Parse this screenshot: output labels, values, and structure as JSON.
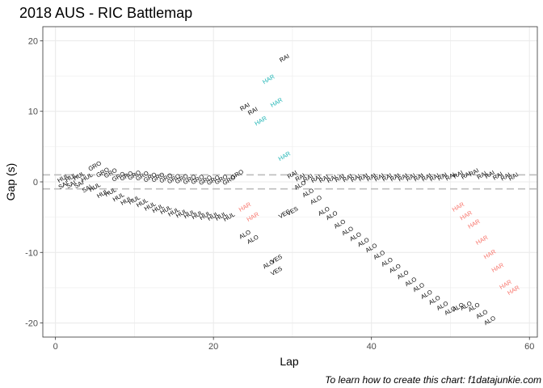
{
  "chart_data": {
    "type": "scatter",
    "title": "2018 AUS - RIC Battlemap",
    "caption": "To learn how to create this chart: f1datajunkie.com",
    "xlabel": "Lap",
    "ylabel": "Gap (s)",
    "xlim": [
      -1.6,
      61.0
    ],
    "ylim": [
      -22.0,
      22.0
    ],
    "x_ticks": [
      0,
      20,
      40,
      60
    ],
    "y_ticks": [
      -20,
      -10,
      0,
      10,
      20
    ],
    "grid": true,
    "label_angle": 30,
    "reference_lines": [
      1,
      -1
    ],
    "colors": {
      "black": "#000000",
      "teal": "#1fb5b5",
      "red": "#f8766d",
      "ref_line": "#bdbdbd",
      "grid": "#ebebeb",
      "panel_border": "#333333"
    },
    "points": [
      {
        "x": 1,
        "y": 0.5,
        "label": "HUL",
        "color": "black"
      },
      {
        "x": 1,
        "y": -0.5,
        "label": "SAI",
        "color": "black"
      },
      {
        "x": 2,
        "y": 0.6,
        "label": "HUL",
        "color": "black"
      },
      {
        "x": 2,
        "y": -0.4,
        "label": "SAI",
        "color": "black"
      },
      {
        "x": 3,
        "y": 0.8,
        "label": "HUL",
        "color": "black"
      },
      {
        "x": 3,
        "y": -0.4,
        "label": "SAI",
        "color": "black"
      },
      {
        "x": 4,
        "y": 0.6,
        "label": "HUL",
        "color": "black"
      },
      {
        "x": 4,
        "y": -1.0,
        "label": "SAI",
        "color": "black"
      },
      {
        "x": 5,
        "y": 2.2,
        "label": "GRO",
        "color": "black"
      },
      {
        "x": 5,
        "y": -0.8,
        "label": "HUL",
        "color": "black"
      },
      {
        "x": 6,
        "y": 1.3,
        "label": "GRO",
        "color": "black"
      },
      {
        "x": 6,
        "y": -1.7,
        "label": "HUL",
        "color": "black"
      },
      {
        "x": 7,
        "y": 1.2,
        "label": "GRO",
        "color": "black"
      },
      {
        "x": 7,
        "y": -1.5,
        "label": "HUL",
        "color": "black"
      },
      {
        "x": 8,
        "y": 0.7,
        "label": "GRO",
        "color": "black"
      },
      {
        "x": 8,
        "y": -2.2,
        "label": "HUL",
        "color": "black"
      },
      {
        "x": 9,
        "y": 0.8,
        "label": "GRO",
        "color": "black"
      },
      {
        "x": 9,
        "y": -2.7,
        "label": "HUL",
        "color": "black"
      },
      {
        "x": 10,
        "y": 0.9,
        "label": "GRO",
        "color": "black"
      },
      {
        "x": 10,
        "y": -2.6,
        "label": "HUL",
        "color": "black"
      },
      {
        "x": 11,
        "y": 0.8,
        "label": "GRO",
        "color": "black"
      },
      {
        "x": 11,
        "y": -3.0,
        "label": "HUL",
        "color": "black"
      },
      {
        "x": 12,
        "y": 0.6,
        "label": "GRO",
        "color": "black"
      },
      {
        "x": 12,
        "y": -3.5,
        "label": "HUL",
        "color": "black"
      },
      {
        "x": 13,
        "y": 0.6,
        "label": "GRO",
        "color": "black"
      },
      {
        "x": 13,
        "y": -3.8,
        "label": "HUL",
        "color": "black"
      },
      {
        "x": 14,
        "y": 0.5,
        "label": "GRO",
        "color": "black"
      },
      {
        "x": 14,
        "y": -4.0,
        "label": "HUL",
        "color": "black"
      },
      {
        "x": 15,
        "y": 0.4,
        "label": "GRO",
        "color": "black"
      },
      {
        "x": 15,
        "y": -4.3,
        "label": "HUL",
        "color": "black"
      },
      {
        "x": 16,
        "y": 0.4,
        "label": "GRO",
        "color": "black"
      },
      {
        "x": 16,
        "y": -4.5,
        "label": "HUL",
        "color": "black"
      },
      {
        "x": 17,
        "y": 0.3,
        "label": "GRO",
        "color": "black"
      },
      {
        "x": 17,
        "y": -4.6,
        "label": "HUL",
        "color": "black"
      },
      {
        "x": 18,
        "y": 0.3,
        "label": "GRO",
        "color": "black"
      },
      {
        "x": 18,
        "y": -4.7,
        "label": "HUL",
        "color": "black"
      },
      {
        "x": 19,
        "y": 0.2,
        "label": "GRO",
        "color": "black"
      },
      {
        "x": 19,
        "y": -4.8,
        "label": "HUL",
        "color": "black"
      },
      {
        "x": 20,
        "y": 0.2,
        "label": "GRO",
        "color": "black"
      },
      {
        "x": 20,
        "y": -4.9,
        "label": "HUL",
        "color": "black"
      },
      {
        "x": 21,
        "y": 0.3,
        "label": "GRO",
        "color": "black"
      },
      {
        "x": 21,
        "y": -4.9,
        "label": "HUL",
        "color": "black"
      },
      {
        "x": 22,
        "y": 0.2,
        "label": "GRO",
        "color": "black"
      },
      {
        "x": 22,
        "y": -5.0,
        "label": "HUL",
        "color": "black"
      },
      {
        "x": 23,
        "y": 1.0,
        "label": "GRO",
        "color": "black"
      },
      {
        "x": 24,
        "y": -3.6,
        "label": "HAR",
        "color": "red"
      },
      {
        "x": 25,
        "y": -5.0,
        "label": "HAR",
        "color": "red"
      },
      {
        "x": 24,
        "y": 10.6,
        "label": "RAI",
        "color": "black"
      },
      {
        "x": 25,
        "y": 10.0,
        "label": "RAI",
        "color": "black"
      },
      {
        "x": 24,
        "y": -7.5,
        "label": "ALO",
        "color": "black"
      },
      {
        "x": 25,
        "y": -8.2,
        "label": "ALO",
        "color": "black"
      },
      {
        "x": 26,
        "y": 8.6,
        "label": "HAR",
        "color": "teal"
      },
      {
        "x": 27,
        "y": 14.5,
        "label": "HAR",
        "color": "teal"
      },
      {
        "x": 28,
        "y": 11.2,
        "label": "HAR",
        "color": "teal"
      },
      {
        "x": 29,
        "y": 17.5,
        "label": "RAI",
        "color": "black"
      },
      {
        "x": 29,
        "y": 3.6,
        "label": "HAR",
        "color": "teal"
      },
      {
        "x": 27,
        "y": -11.7,
        "label": "ALO",
        "color": "black"
      },
      {
        "x": 28,
        "y": -11.0,
        "label": "VES",
        "color": "black"
      },
      {
        "x": 28,
        "y": -12.7,
        "label": "VES",
        "color": "black"
      },
      {
        "x": 29,
        "y": -4.6,
        "label": "VES",
        "color": "black"
      },
      {
        "x": 30,
        "y": -4.2,
        "label": "VES",
        "color": "black"
      },
      {
        "x": 30,
        "y": 1.0,
        "label": "RAI",
        "color": "black"
      },
      {
        "x": 31,
        "y": 0.6,
        "label": "RAI",
        "color": "black"
      },
      {
        "x": 31,
        "y": -0.5,
        "label": "ALO",
        "color": "black"
      },
      {
        "x": 32,
        "y": 0.5,
        "label": "RAI",
        "color": "black"
      },
      {
        "x": 33,
        "y": 0.4,
        "label": "RAI",
        "color": "black"
      },
      {
        "x": 32,
        "y": -1.6,
        "label": "ALO",
        "color": "black"
      },
      {
        "x": 33,
        "y": -2.6,
        "label": "ALO",
        "color": "black"
      },
      {
        "x": 34,
        "y": 0.4,
        "label": "RAI",
        "color": "black"
      },
      {
        "x": 34,
        "y": -4.2,
        "label": "ALO",
        "color": "black"
      },
      {
        "x": 35,
        "y": 0.4,
        "label": "RAI",
        "color": "black"
      },
      {
        "x": 35,
        "y": -4.8,
        "label": "ALO",
        "color": "black"
      },
      {
        "x": 36,
        "y": 0.5,
        "label": "RAI",
        "color": "black"
      },
      {
        "x": 36,
        "y": -6.0,
        "label": "ALO",
        "color": "black"
      },
      {
        "x": 37,
        "y": 0.5,
        "label": "RAI",
        "color": "black"
      },
      {
        "x": 37,
        "y": -7.0,
        "label": "ALO",
        "color": "black"
      },
      {
        "x": 38,
        "y": 0.5,
        "label": "RAI",
        "color": "black"
      },
      {
        "x": 38,
        "y": -7.8,
        "label": "ALO",
        "color": "black"
      },
      {
        "x": 39,
        "y": 0.6,
        "label": "RAI",
        "color": "black"
      },
      {
        "x": 39,
        "y": -8.6,
        "label": "ALO",
        "color": "black"
      },
      {
        "x": 40,
        "y": 0.6,
        "label": "RAI",
        "color": "black"
      },
      {
        "x": 40,
        "y": -9.4,
        "label": "ALO",
        "color": "black"
      },
      {
        "x": 41,
        "y": 0.6,
        "label": "RAI",
        "color": "black"
      },
      {
        "x": 41,
        "y": -10.4,
        "label": "ALO",
        "color": "black"
      },
      {
        "x": 42,
        "y": 0.6,
        "label": "RAI",
        "color": "black"
      },
      {
        "x": 42,
        "y": -11.4,
        "label": "ALO",
        "color": "black"
      },
      {
        "x": 43,
        "y": 0.6,
        "label": "RAI",
        "color": "black"
      },
      {
        "x": 43,
        "y": -12.3,
        "label": "ALO",
        "color": "black"
      },
      {
        "x": 44,
        "y": 0.6,
        "label": "RAI",
        "color": "black"
      },
      {
        "x": 44,
        "y": -13.2,
        "label": "ALO",
        "color": "black"
      },
      {
        "x": 45,
        "y": 0.6,
        "label": "RAI",
        "color": "black"
      },
      {
        "x": 45,
        "y": -14.2,
        "label": "ALO",
        "color": "black"
      },
      {
        "x": 46,
        "y": 0.6,
        "label": "RAI",
        "color": "black"
      },
      {
        "x": 46,
        "y": -15.0,
        "label": "ALO",
        "color": "black"
      },
      {
        "x": 47,
        "y": 0.6,
        "label": "RAI",
        "color": "black"
      },
      {
        "x": 47,
        "y": -16.0,
        "label": "ALO",
        "color": "black"
      },
      {
        "x": 48,
        "y": 0.6,
        "label": "RAI",
        "color": "black"
      },
      {
        "x": 48,
        "y": -16.8,
        "label": "ALO",
        "color": "black"
      },
      {
        "x": 49,
        "y": 0.7,
        "label": "RAI",
        "color": "black"
      },
      {
        "x": 49,
        "y": -17.6,
        "label": "ALO",
        "color": "black"
      },
      {
        "x": 50,
        "y": 0.7,
        "label": "RAI",
        "color": "black"
      },
      {
        "x": 50,
        "y": -18.3,
        "label": "ALO",
        "color": "black"
      },
      {
        "x": 51,
        "y": 1.0,
        "label": "RAI",
        "color": "black"
      },
      {
        "x": 51,
        "y": -3.6,
        "label": "HAR",
        "color": "red"
      },
      {
        "x": 51,
        "y": -17.8,
        "label": "ALO",
        "color": "black"
      },
      {
        "x": 52,
        "y": 0.9,
        "label": "RAI",
        "color": "black"
      },
      {
        "x": 52,
        "y": -4.8,
        "label": "HAR",
        "color": "red"
      },
      {
        "x": 52,
        "y": -17.6,
        "label": "ALO",
        "color": "black"
      },
      {
        "x": 53,
        "y": 1.3,
        "label": "RAI",
        "color": "black"
      },
      {
        "x": 53,
        "y": -6.0,
        "label": "HAR",
        "color": "red"
      },
      {
        "x": 53,
        "y": -17.8,
        "label": "ALO",
        "color": "black"
      },
      {
        "x": 54,
        "y": 0.9,
        "label": "RAI",
        "color": "black"
      },
      {
        "x": 54,
        "y": -8.3,
        "label": "HAR",
        "color": "red"
      },
      {
        "x": 54,
        "y": -18.8,
        "label": "ALO",
        "color": "black"
      },
      {
        "x": 55,
        "y": 1.0,
        "label": "RAI",
        "color": "black"
      },
      {
        "x": 55,
        "y": -10.3,
        "label": "HAR",
        "color": "red"
      },
      {
        "x": 55,
        "y": -19.7,
        "label": "ALO",
        "color": "black"
      },
      {
        "x": 56,
        "y": 0.8,
        "label": "RAI",
        "color": "black"
      },
      {
        "x": 56,
        "y": -12.2,
        "label": "HAR",
        "color": "red"
      },
      {
        "x": 57,
        "y": 0.7,
        "label": "RAI",
        "color": "black"
      },
      {
        "x": 57,
        "y": -14.6,
        "label": "HAR",
        "color": "red"
      },
      {
        "x": 58,
        "y": 0.7,
        "label": "RAI",
        "color": "black"
      },
      {
        "x": 58,
        "y": -15.4,
        "label": "HAR",
        "color": "red"
      }
    ]
  }
}
